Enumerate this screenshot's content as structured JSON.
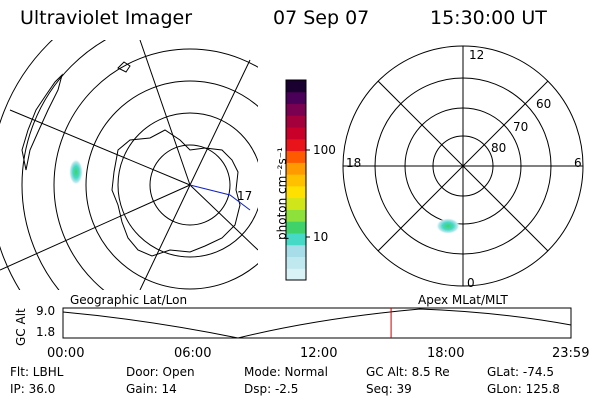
{
  "header": {
    "instrument": "Ultraviolet Imager",
    "date": "07 Sep 07",
    "time": "15:30:00 UT"
  },
  "geo_panel": {
    "label": "Geographic Lat/Lon",
    "lon_label": "17"
  },
  "mag_panel": {
    "label": "Apex MLat/MLT",
    "mlt_labels": {
      "top": "12",
      "left": "18",
      "right": "6",
      "bottom": "0"
    },
    "lat_labels": [
      "60",
      "70",
      "80"
    ]
  },
  "colorbar": {
    "unit_label": "photon cm⁻²s⁻¹",
    "ticks": [
      "100",
      "10"
    ],
    "colors": [
      "#d8f2f6",
      "#bfe8ef",
      "#a6dde8",
      "#45d9c6",
      "#3fd26a",
      "#8ee03a",
      "#d0e61a",
      "#ffe000",
      "#ffc000",
      "#ff9a00",
      "#ff5a00",
      "#e8141a",
      "#c8002a",
      "#a4003c",
      "#7a0052",
      "#4a0058",
      "#1a0030"
    ]
  },
  "timeline": {
    "y_title": "GC Alt",
    "y_ticks": [
      "9.0",
      "1.8"
    ],
    "x_ticks": [
      "00:00",
      "06:00",
      "12:00",
      "18:00",
      "23:59"
    ],
    "marker_hour": 15.5
  },
  "params": {
    "flt": "Flt: LBHL",
    "ip": "IP: 36.0",
    "door": "Door: Open",
    "gain": "Gain: 14",
    "mode": "Mode: Normal",
    "dsp": "Dsp:    -2.5",
    "gc_alt": "GC Alt: 8.5 Re",
    "seq": "Seq: 39",
    "glat": "GLat: -74.5",
    "glon": "GLon: 125.8"
  },
  "colors": {
    "marker": "#cc0000",
    "ink": "#000000"
  }
}
